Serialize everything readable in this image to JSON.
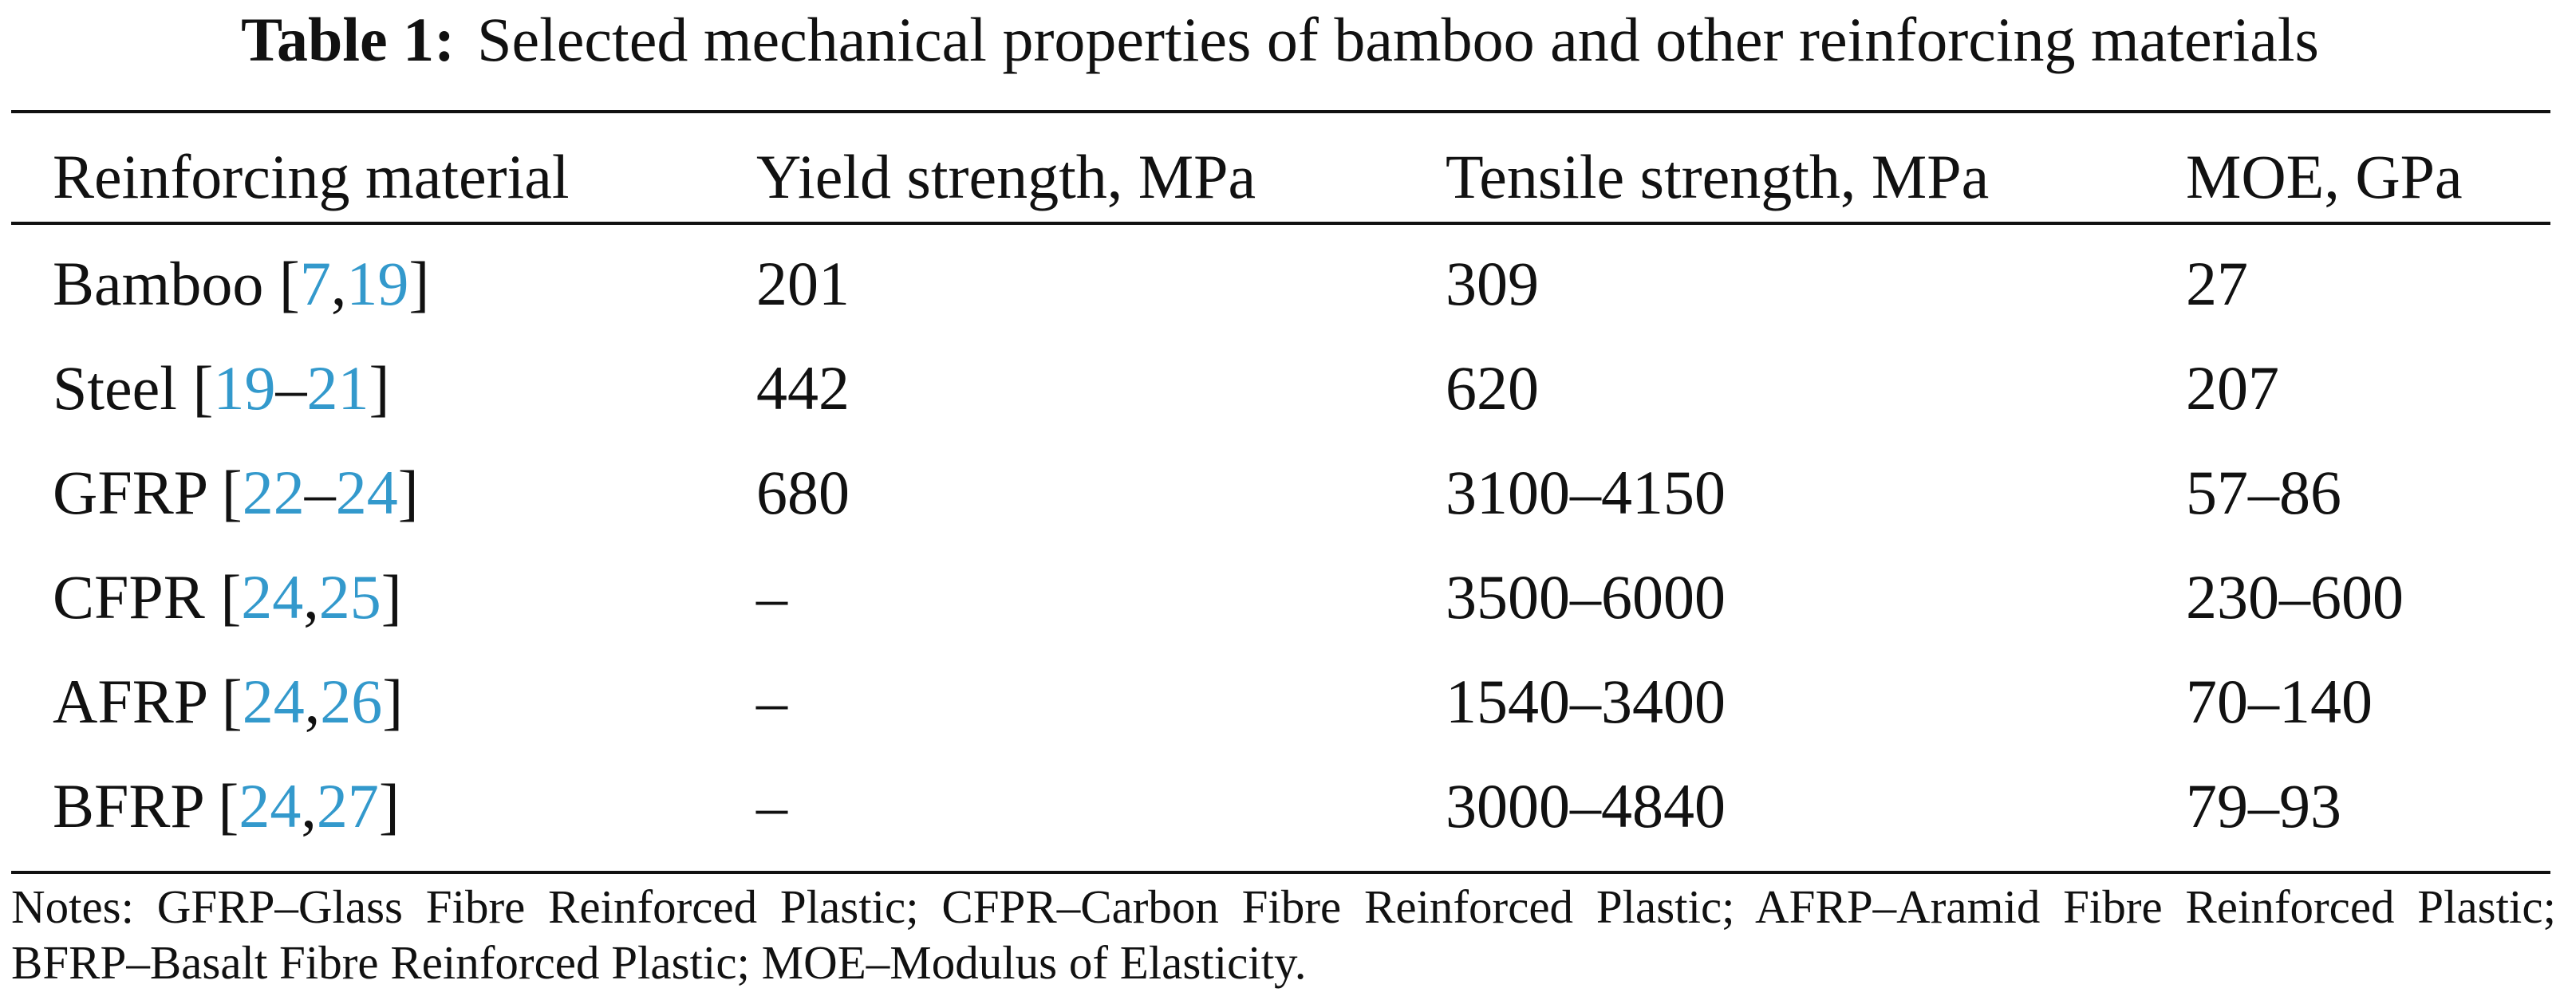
{
  "caption": {
    "label": "Table 1:",
    "text": "Selected mechanical properties of bamboo and other reinforcing materials"
  },
  "table": {
    "headers": [
      "Reinforcing material",
      "Yield strength, MPa",
      "Tensile strength, MPa",
      "MOE, GPa"
    ],
    "rows": [
      {
        "material": "Bamboo",
        "refs": [
          {
            "text": "7",
            "sep": ","
          },
          {
            "text": "19",
            "sep": ""
          }
        ],
        "yield": "201",
        "tensile": "309",
        "moe": "27"
      },
      {
        "material": "Steel",
        "refs": [
          {
            "text": "19",
            "sep": "–"
          },
          {
            "text": "21",
            "sep": ""
          }
        ],
        "yield": "442",
        "tensile": "620",
        "moe": "207"
      },
      {
        "material": "GFRP",
        "refs": [
          {
            "text": "22",
            "sep": "–"
          },
          {
            "text": "24",
            "sep": ""
          }
        ],
        "yield": "680",
        "tensile": "3100–4150",
        "moe": "57–86"
      },
      {
        "material": "CFPR",
        "refs": [
          {
            "text": "24",
            "sep": ","
          },
          {
            "text": "25",
            "sep": ""
          }
        ],
        "yield": "–",
        "tensile": "3500–6000",
        "moe": "230–600"
      },
      {
        "material": "AFRP",
        "refs": [
          {
            "text": "24",
            "sep": ","
          },
          {
            "text": "26",
            "sep": ""
          }
        ],
        "yield": "–",
        "tensile": "1540–3400",
        "moe": "70–140"
      },
      {
        "material": "BFRP",
        "refs": [
          {
            "text": "24",
            "sep": ","
          },
          {
            "text": "27",
            "sep": ""
          }
        ],
        "yield": "–",
        "tensile": "3000–4840",
        "moe": "79–93"
      }
    ]
  },
  "notes": "Notes: GFRP–Glass Fibre Reinforced Plastic; CFPR–Carbon Fibre Reinforced Plastic; AFRP–Aramid Fibre Reinforced Plastic; BFRP–Basalt Fibre Reinforced Plastic; MOE–Modulus of Elasticity.",
  "colors": {
    "text": "#111111",
    "reference_link": "#3399cc",
    "rule": "#111111"
  }
}
